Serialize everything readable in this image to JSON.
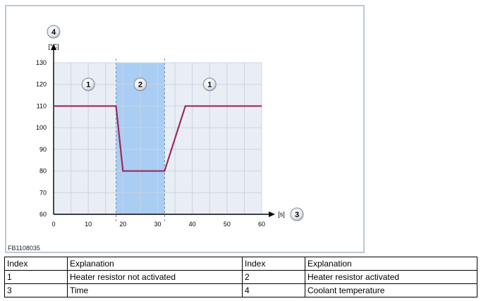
{
  "figure_id": "FB1108035",
  "chart_data": {
    "type": "line",
    "title": "",
    "xlabel": "[s]",
    "ylabel": "[°C]",
    "xlim": [
      0,
      60
    ],
    "ylim": [
      60,
      130
    ],
    "x_ticks": [
      0,
      10,
      20,
      30,
      40,
      50,
      60
    ],
    "y_ticks": [
      60,
      70,
      80,
      90,
      100,
      110,
      120,
      130
    ],
    "grid": true,
    "series": [
      {
        "color": "#9c2a5a",
        "x": [
          0,
          18,
          20,
          32,
          38,
          60
        ],
        "y": [
          110,
          110,
          80,
          80,
          110,
          110
        ]
      }
    ],
    "highlight_band": {
      "x_start": 18,
      "x_end": 32,
      "color": "#a9cdf3"
    },
    "region_markers": [
      {
        "label": "1",
        "x": 10,
        "y": 120
      },
      {
        "label": "2",
        "x": 25,
        "y": 120
      },
      {
        "label": "1",
        "x": 45,
        "y": 120
      }
    ],
    "axis_markers": {
      "y_axis": "4",
      "x_axis": "3"
    }
  },
  "legend_table": {
    "rows": [
      [
        "Index",
        "Explanation",
        "Index",
        "Explanation"
      ],
      [
        "1",
        "Heater resistor not activated",
        "2",
        "Heater resistor activated"
      ],
      [
        "3",
        "Time",
        "4",
        "Coolant temperature"
      ]
    ]
  }
}
